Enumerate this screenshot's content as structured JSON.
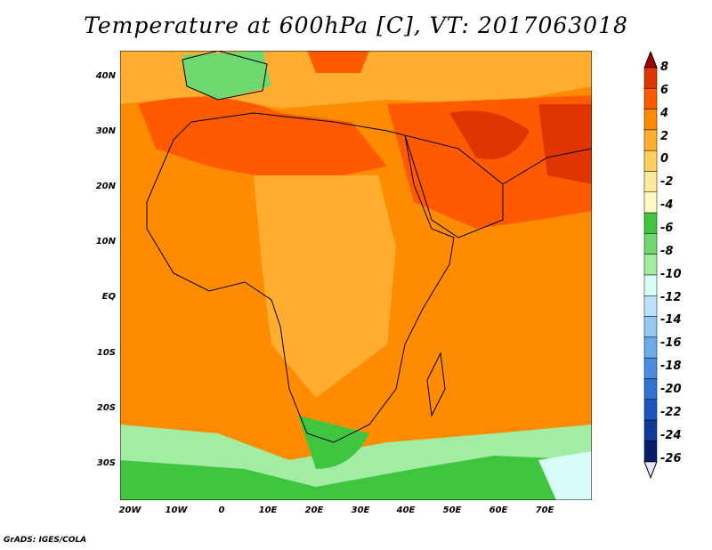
{
  "title": "Temperature at 600hPa [C], VT: 2017063018",
  "footer": "GrADS: IGES/COLA",
  "y_axis_labels": [
    "40N",
    "30N",
    "20N",
    "10N",
    "EQ",
    "10S",
    "20S",
    "30S"
  ],
  "x_axis_labels": [
    "20W",
    "10W",
    "0",
    "10E",
    "20E",
    "30E",
    "40E",
    "50E",
    "60E",
    "70E"
  ],
  "colorbar": {
    "labels": [
      "8",
      "6",
      "4",
      "2",
      "0",
      "-2",
      "-4",
      "-6",
      "-8",
      "-10",
      "-12",
      "-14",
      "-16",
      "-18",
      "-20",
      "-22",
      "-24",
      "-26"
    ],
    "colors": [
      "#a50000",
      "#e03500",
      "#ff5a00",
      "#ff8c00",
      "#ffae30",
      "#ffd060",
      "#ffe89a",
      "#fffabf",
      "#3fc53f",
      "#6fd96f",
      "#a3eca3",
      "#d8fcf8",
      "#bce2fb",
      "#93c8f3",
      "#6aabe9",
      "#4b8ee0",
      "#3172d2",
      "#1c55bd",
      "#0f3a9c",
      "#081d6a"
    ],
    "arrow_bottom_color": "#e3e3ff"
  },
  "map": {
    "region": "Africa and Middle East",
    "lon_range": [
      -22,
      80
    ],
    "lat_range": [
      -37,
      45
    ],
    "land_colors": {
      "warm": "#ff5a00",
      "mid": "#ff8c00",
      "light": "#ffae30",
      "cool_green": "#3fc53f",
      "pale_green": "#a3eca3",
      "cyan": "#d8fcf8"
    }
  }
}
